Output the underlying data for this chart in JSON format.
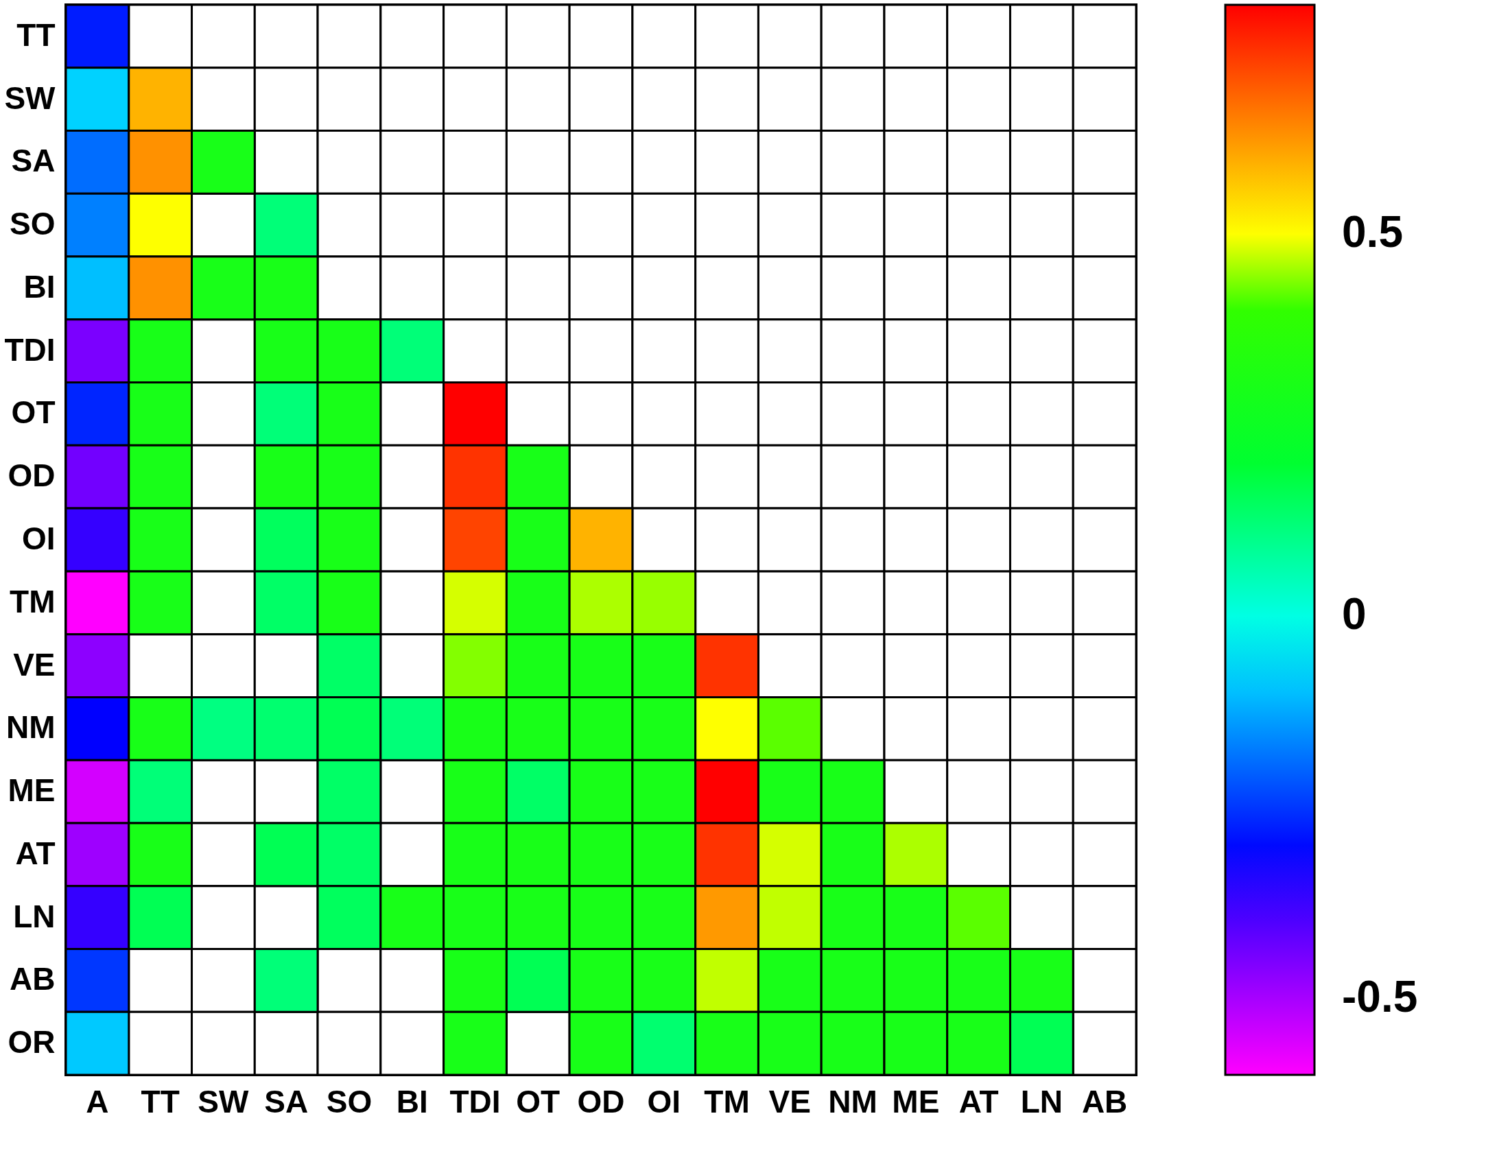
{
  "chart_data": {
    "type": "heatmap",
    "categories": [
      "A",
      "TT",
      "SW",
      "SA",
      "SO",
      "BI",
      "TDI",
      "OT",
      "OD",
      "OI",
      "TM",
      "VE",
      "NM",
      "ME",
      "AT",
      "LN",
      "AB"
    ],
    "y_categories": [
      "TT",
      "SW",
      "SA",
      "SO",
      "BI",
      "TDI",
      "OT",
      "OD",
      "OI",
      "TM",
      "VE",
      "NM",
      "ME",
      "AT",
      "LN",
      "AB",
      "OR"
    ],
    "cells": [
      [
        -0.28,
        null,
        null,
        null,
        null,
        null,
        null,
        null,
        null,
        null,
        null,
        null,
        null,
        null,
        null,
        null,
        null
      ],
      [
        -0.08,
        0.59,
        null,
        null,
        null,
        null,
        null,
        null,
        null,
        null,
        null,
        null,
        null,
        null,
        null,
        null,
        null
      ],
      [
        -0.19,
        0.63,
        0.3,
        null,
        null,
        null,
        null,
        null,
        null,
        null,
        null,
        null,
        null,
        null,
        null,
        null,
        null
      ],
      [
        -0.17,
        0.5,
        null,
        0.12,
        null,
        null,
        null,
        null,
        null,
        null,
        null,
        null,
        null,
        null,
        null,
        null,
        null
      ],
      [
        -0.1,
        0.63,
        0.3,
        0.3,
        null,
        null,
        null,
        null,
        null,
        null,
        null,
        null,
        null,
        null,
        null,
        null,
        null
      ],
      [
        -0.45,
        0.3,
        null,
        0.3,
        0.3,
        0.12,
        null,
        null,
        null,
        null,
        null,
        null,
        null,
        null,
        null,
        null,
        null
      ],
      [
        -0.27,
        0.3,
        null,
        0.12,
        0.3,
        null,
        0.8,
        null,
        null,
        null,
        null,
        null,
        null,
        null,
        null,
        null,
        null
      ],
      [
        -0.44,
        0.3,
        null,
        0.3,
        0.3,
        null,
        0.74,
        0.3,
        null,
        null,
        null,
        null,
        null,
        null,
        null,
        null,
        null
      ],
      [
        -0.37,
        0.3,
        null,
        0.15,
        0.3,
        null,
        0.72,
        0.3,
        0.59,
        null,
        null,
        null,
        null,
        null,
        null,
        null,
        null
      ],
      [
        -0.6,
        0.3,
        null,
        0.14,
        0.3,
        null,
        0.48,
        0.3,
        0.46,
        0.45,
        null,
        null,
        null,
        null,
        null,
        null,
        null
      ],
      [
        -0.47,
        null,
        null,
        null,
        0.14,
        null,
        0.44,
        0.3,
        0.3,
        0.3,
        0.74,
        null,
        null,
        null,
        null,
        null,
        null
      ],
      [
        -0.31,
        0.3,
        0.11,
        0.13,
        0.16,
        0.12,
        0.3,
        0.3,
        0.3,
        0.3,
        0.5,
        0.42,
        null,
        null,
        null,
        null,
        null
      ],
      [
        -0.55,
        0.12,
        null,
        null,
        0.14,
        null,
        0.3,
        0.14,
        0.3,
        0.3,
        0.8,
        0.3,
        0.3,
        null,
        null,
        null,
        null
      ],
      [
        -0.49,
        0.3,
        null,
        0.16,
        0.14,
        null,
        0.3,
        0.3,
        0.3,
        0.3,
        0.74,
        0.48,
        0.3,
        0.46,
        null,
        null,
        null
      ],
      [
        -0.37,
        0.16,
        null,
        null,
        0.15,
        0.3,
        0.3,
        0.3,
        0.3,
        0.3,
        0.62,
        0.47,
        0.3,
        0.3,
        0.42,
        null,
        null
      ],
      [
        -0.25,
        null,
        null,
        0.12,
        null,
        null,
        0.3,
        0.16,
        0.3,
        0.3,
        0.47,
        0.3,
        0.3,
        0.3,
        0.3,
        0.3,
        null
      ],
      [
        -0.09,
        null,
        null,
        null,
        null,
        null,
        0.3,
        null,
        0.3,
        0.13,
        0.3,
        0.3,
        0.3,
        0.3,
        0.3,
        0.16,
        null
      ]
    ],
    "clim": [
      -0.6,
      0.8
    ],
    "cticks": [
      -0.5,
      0,
      0.5
    ]
  }
}
